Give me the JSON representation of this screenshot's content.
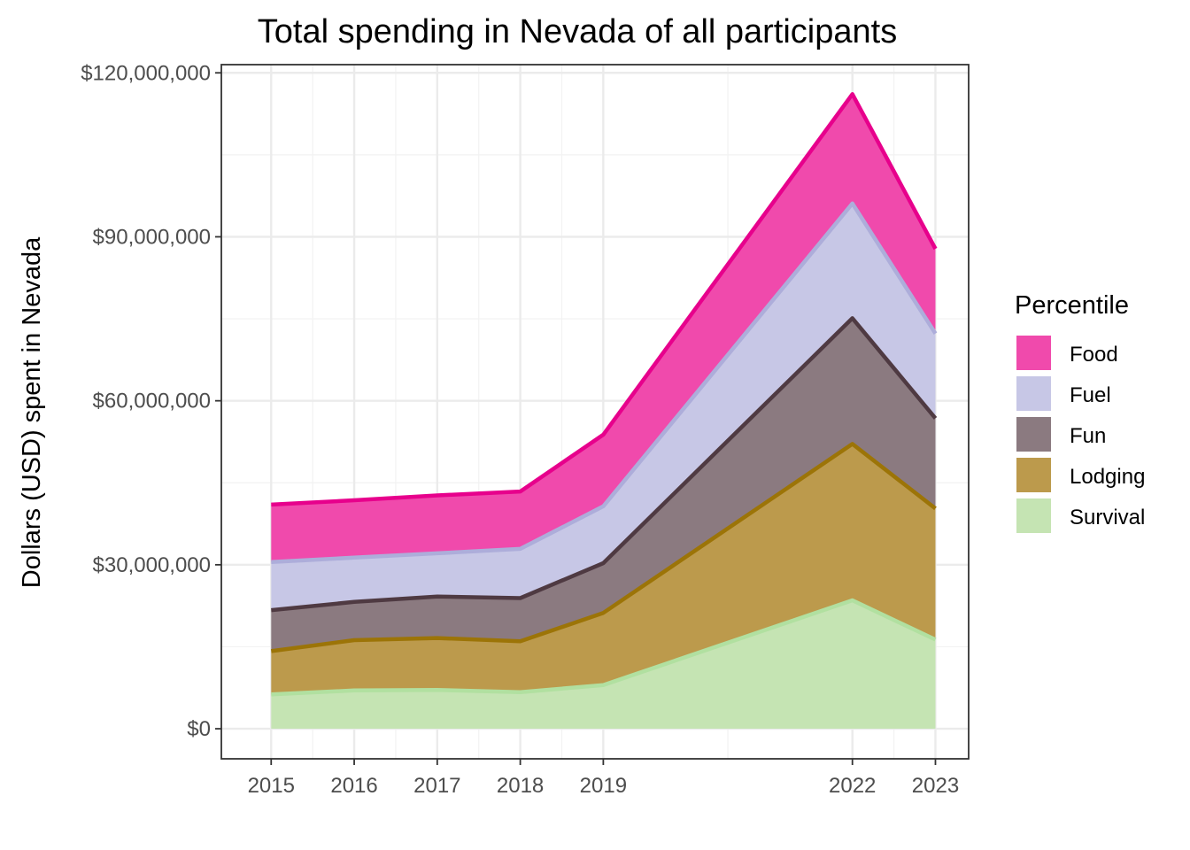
{
  "chart_data": {
    "type": "area",
    "stacked": true,
    "title": "Total spending in Nevada of all participants",
    "xlabel": "",
    "ylabel": "Dollars (USD) spent in Nevada",
    "x": [
      2015,
      2016,
      2017,
      2018,
      2019,
      2022,
      2023
    ],
    "x_tick_labels": [
      "2015",
      "2016",
      "2017",
      "2018",
      "2019",
      "2022",
      "2023"
    ],
    "xlim": [
      2014.4,
      2023.4
    ],
    "ylim": [
      -5500000,
      121500000
    ],
    "y_ticks": [
      0,
      30000000,
      60000000,
      90000000,
      120000000
    ],
    "y_tick_labels": [
      "$0",
      "$30,000,000",
      "$60,000,000",
      "$90,000,000",
      "$120,000,000"
    ],
    "grid": true,
    "legend": {
      "title": "Percentile",
      "position": "right"
    },
    "series": [
      {
        "name": "Food",
        "fill": "#f04aac",
        "line": "#e7008c",
        "values": [
          10500000,
          10500000,
          10600000,
          10500000,
          13100000,
          20000000,
          15500000
        ]
      },
      {
        "name": "Fuel",
        "fill": "#c7c7e6",
        "line": "#adadda",
        "values": [
          8800000,
          8100000,
          7900000,
          9000000,
          10400000,
          21000000,
          15500000
        ]
      },
      {
        "name": "Fun",
        "fill": "#8b7a80",
        "line": "#4f3a42",
        "values": [
          7500000,
          7000000,
          7600000,
          7900000,
          9100000,
          23000000,
          16500000
        ]
      },
      {
        "name": "Lodging",
        "fill": "#bc9a4c",
        "line": "#9c7407",
        "values": [
          7900000,
          9200000,
          9500000,
          9300000,
          13200000,
          28600000,
          24000000
        ]
      },
      {
        "name": "Survival",
        "fill": "#c5e4b3",
        "line": "#b1e0a0",
        "values": [
          6300000,
          7000000,
          7100000,
          6700000,
          8000000,
          23500000,
          16300000
        ]
      }
    ]
  }
}
